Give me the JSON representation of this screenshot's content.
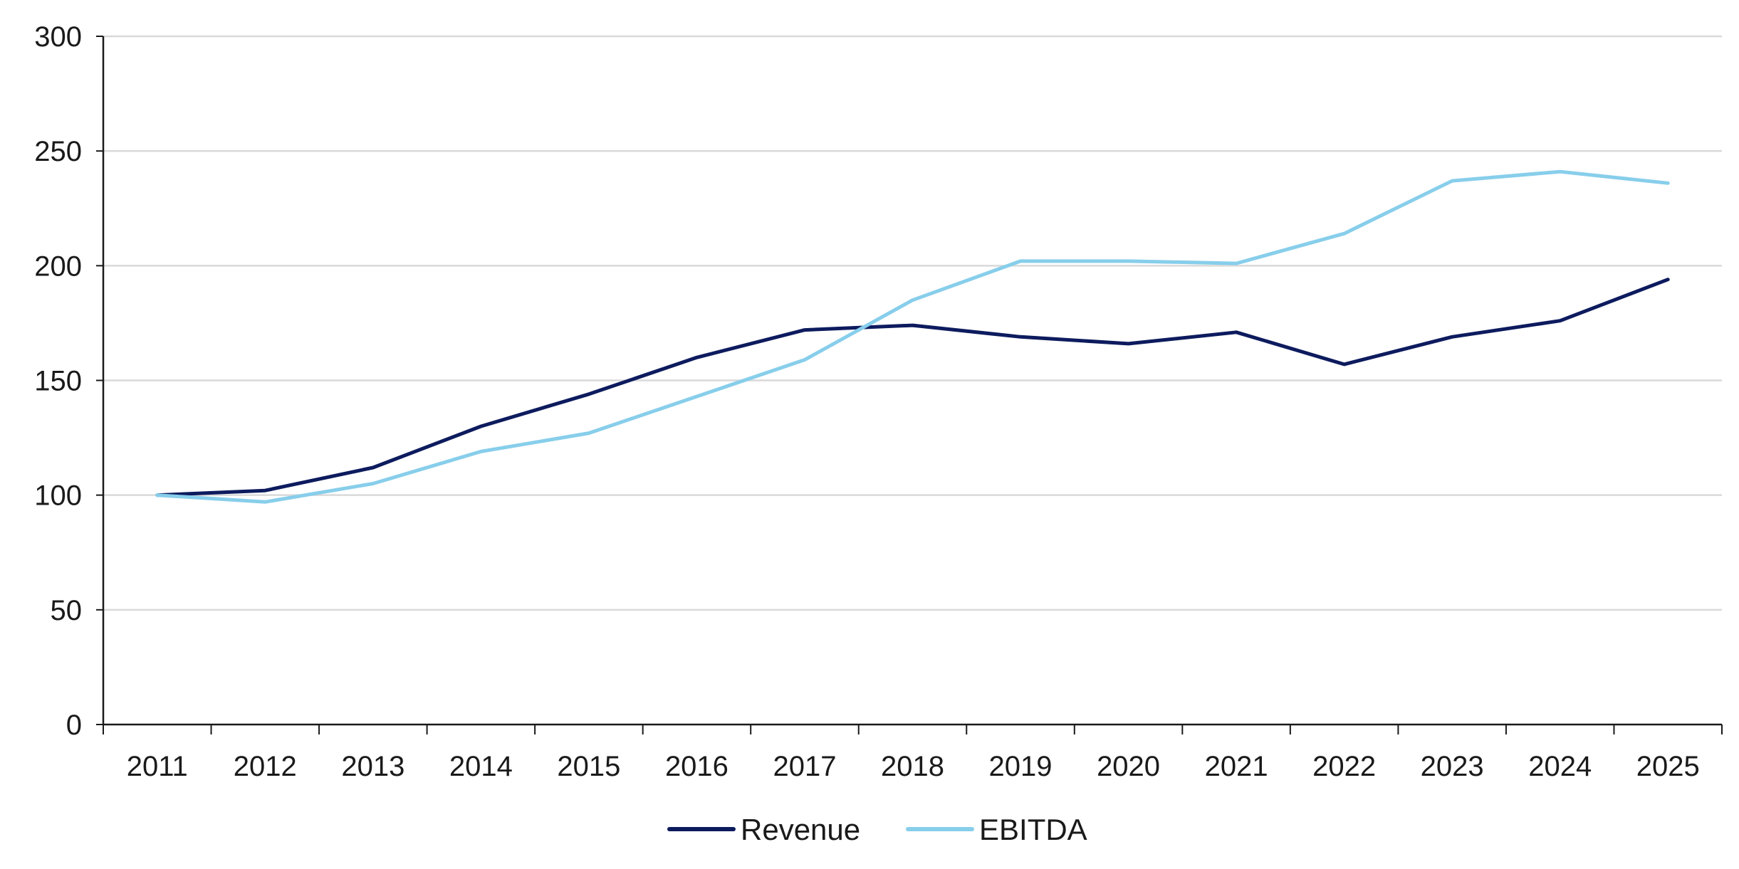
{
  "chart_data": {
    "type": "line",
    "x": [
      "2011",
      "2012",
      "2013",
      "2014",
      "2015",
      "2016",
      "2017",
      "2018",
      "2019",
      "2020",
      "2021",
      "2022",
      "2023",
      "2024",
      "2025"
    ],
    "series": [
      {
        "name": "Revenue",
        "color": "#0d1b5e",
        "values": [
          100,
          102,
          112,
          130,
          144,
          160,
          172,
          174,
          169,
          166,
          171,
          157,
          169,
          176,
          194
        ]
      },
      {
        "name": "EBITDA",
        "color": "#87ceeb",
        "values": [
          100,
          97,
          105,
          119,
          127,
          143,
          159,
          185,
          202,
          202,
          201,
          214,
          237,
          241,
          236
        ]
      }
    ],
    "ylim": [
      0,
      300
    ],
    "yticks": [
      0,
      50,
      100,
      150,
      200,
      250,
      300
    ],
    "grid": true,
    "gridColor": "#d9d9d9",
    "legend": "bottom-center",
    "title": "",
    "xlabel": "",
    "ylabel": ""
  }
}
